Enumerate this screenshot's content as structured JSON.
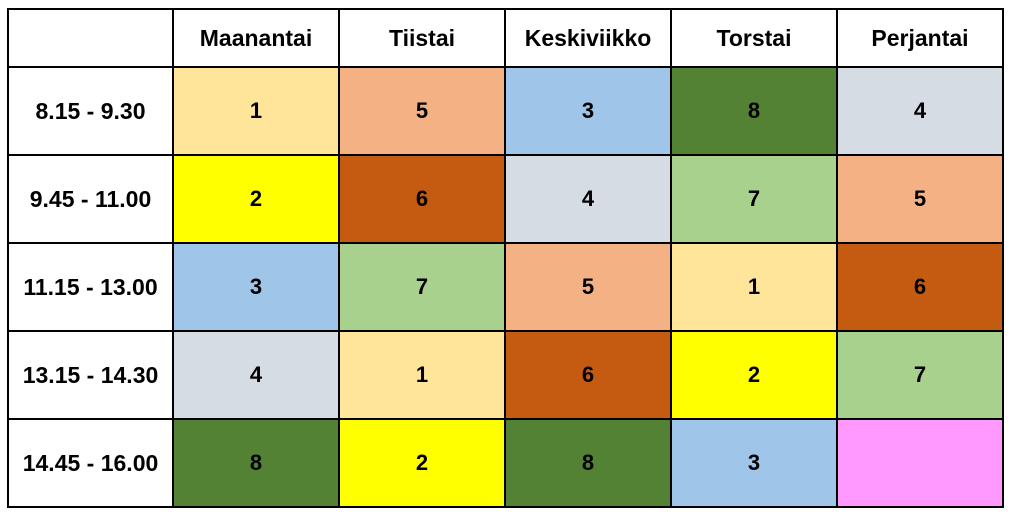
{
  "header": {
    "corner": "",
    "days": [
      "Maanantai",
      "Tiistai",
      "Keskiviikko",
      "Torstai",
      "Perjantai"
    ]
  },
  "colors": {
    "1": "#ffe599",
    "2": "#ffff00",
    "3": "#9fc5e8",
    "4": "#d6dce4",
    "5": "#f4b183",
    "6": "#c55a11",
    "7": "#a9d18e",
    "8": "#548235",
    "empty": "#ff99ff"
  },
  "rows": [
    {
      "time": "8.15 - 9.30",
      "cells": [
        "1",
        "5",
        "3",
        "8",
        "4"
      ]
    },
    {
      "time": "9.45 - 11.00",
      "cells": [
        "2",
        "6",
        "4",
        "7",
        "5"
      ]
    },
    {
      "time": "11.15 - 13.00",
      "cells": [
        "3",
        "7",
        "5",
        "1",
        "6"
      ]
    },
    {
      "time": "13.15 - 14.30",
      "cells": [
        "4",
        "1",
        "6",
        "2",
        "7"
      ]
    },
    {
      "time": "14.45 - 16.00",
      "cells": [
        "8",
        "2",
        "8",
        "3",
        ""
      ]
    }
  ]
}
